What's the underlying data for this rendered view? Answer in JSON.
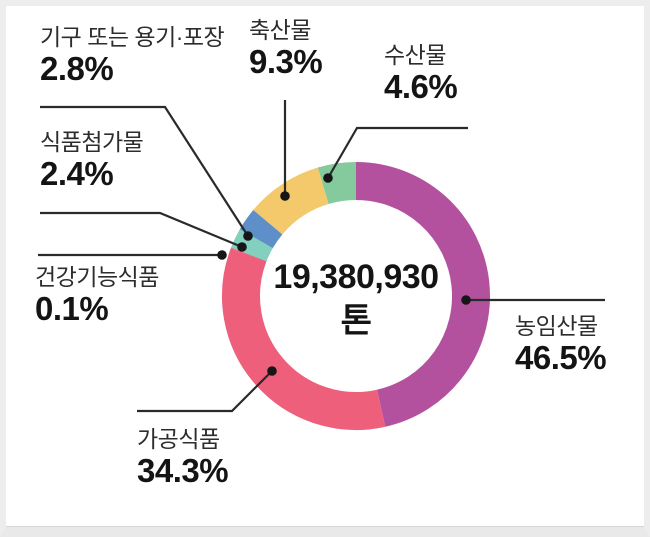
{
  "chart_data": {
    "type": "pie",
    "subtype": "donut",
    "title": "",
    "center_label": {
      "value": "19,380,930",
      "unit": "톤"
    },
    "unit": "%",
    "start_angle_deg": 0,
    "direction": "clockwise",
    "segments": [
      {
        "label": "농임산물",
        "value": 46.5,
        "display": "46.5%",
        "color": "#b4519f"
      },
      {
        "label": "가공식품",
        "value": 34.3,
        "display": "34.3%",
        "color": "#ee5f7c"
      },
      {
        "label": "건강기능식품",
        "value": 0.1,
        "display": "0.1%",
        "color": "#d95570"
      },
      {
        "label": "식품첨가물",
        "value": 2.4,
        "display": "2.4%",
        "color": "#82d0bd"
      },
      {
        "label": "기구 또는 용기·포장",
        "value": 2.8,
        "display": "2.8%",
        "color": "#5f8fc9"
      },
      {
        "label": "축산물",
        "value": 9.3,
        "display": "9.3%",
        "color": "#f4c96b"
      },
      {
        "label": "수산물",
        "value": 4.6,
        "display": "4.6%",
        "color": "#85ca9d"
      }
    ]
  }
}
